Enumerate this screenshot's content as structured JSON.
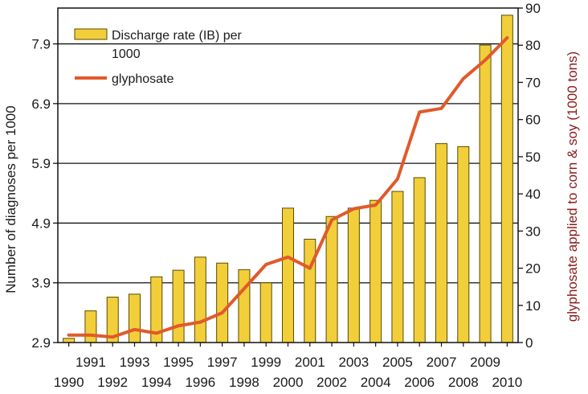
{
  "chart_data": {
    "type": "bar+line",
    "categories": [
      "1990",
      "1991",
      "1992",
      "1993",
      "1994",
      "1995",
      "1996",
      "1997",
      "1998",
      "1999",
      "2000",
      "2001",
      "2002",
      "2003",
      "2004",
      "2005",
      "2006",
      "2007",
      "2008",
      "2009",
      "2010"
    ],
    "x_tick_labels_top": [
      "1991",
      "1993",
      "1995",
      "1997",
      "1999",
      "2001",
      "2003",
      "2005",
      "2007",
      "2009"
    ],
    "x_tick_labels_bottom": [
      "1990",
      "1992",
      "1994",
      "1996",
      "1998",
      "2000",
      "2002",
      "2004",
      "2006",
      "2008",
      "2010"
    ],
    "series": [
      {
        "name": "Discharge rate (IB) per 1000",
        "legend_line1": "Discharge rate (IB) per",
        "legend_line2": "1000",
        "type": "bar",
        "axis": "left",
        "color": "#f2cf3a",
        "values": [
          2.97,
          3.43,
          3.66,
          3.71,
          4.0,
          4.11,
          4.33,
          4.23,
          4.12,
          3.9,
          5.15,
          4.63,
          5.01,
          5.15,
          5.28,
          5.43,
          5.66,
          6.23,
          6.18,
          7.88,
          8.38
        ]
      },
      {
        "name": "glyphosate",
        "type": "line",
        "axis": "right",
        "color": "#e05a2b",
        "values": [
          2,
          2,
          1.5,
          3.5,
          2.5,
          4.5,
          5.5,
          8,
          14.5,
          21,
          23,
          20,
          33,
          36,
          37,
          44,
          62,
          63,
          71,
          76,
          82
        ]
      }
    ],
    "left_axis": {
      "label": "Number of diagnoses per 1000",
      "ticks": [
        2.9,
        3.9,
        4.9,
        5.9,
        6.9,
        7.9
      ],
      "tick_labels": [
        "2.9",
        "3.9",
        "4.9",
        "5.9",
        "6.9",
        "7.9"
      ],
      "ylim": [
        2.9,
        8.5
      ]
    },
    "right_axis": {
      "label": "glyphosate applied to corn & soy (1000 tons)",
      "label_color": "#8b1a1a",
      "ticks": [
        0,
        10,
        20,
        30,
        40,
        50,
        60,
        70,
        80,
        90
      ],
      "tick_labels": [
        "0",
        "10",
        "20",
        "30",
        "40",
        "50",
        "60",
        "70",
        "80",
        "90"
      ],
      "ylim": [
        0,
        90
      ]
    },
    "grid": true,
    "legend_position": "top-left"
  }
}
